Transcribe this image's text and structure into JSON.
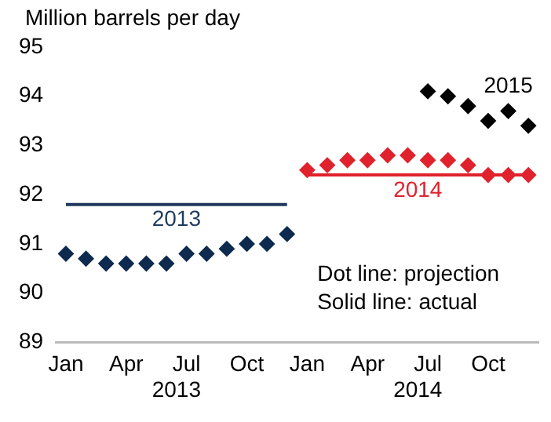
{
  "chart_data": {
    "type": "scatter",
    "ylabel": "Million barrels per day",
    "categories": [
      "Jan",
      null,
      null,
      "Apr",
      null,
      null,
      "Jul",
      null,
      null,
      "Oct",
      null,
      null,
      "Jan",
      null,
      null,
      "Apr",
      null,
      null,
      "Jul",
      null,
      null,
      "Oct",
      null,
      null
    ],
    "series": [
      {
        "color": "#0e2a4f",
        "values": [
          90.8,
          90.7,
          90.6,
          90.6,
          90.6,
          90.6,
          90.8,
          90.8,
          90.9,
          91.0,
          91.0,
          91.2,
          null,
          null,
          null,
          null,
          null,
          null,
          null,
          null,
          null,
          null,
          null,
          null
        ]
      },
      {
        "color": "#e0222c",
        "values": [
          null,
          null,
          null,
          null,
          null,
          null,
          null,
          null,
          null,
          null,
          null,
          null,
          92.5,
          92.6,
          92.7,
          92.7,
          92.8,
          92.8,
          92.7,
          92.7,
          92.6,
          92.4,
          92.4,
          92.4
        ]
      },
      {
        "name": "2015",
        "color": "#000000",
        "values": [
          null,
          null,
          null,
          null,
          null,
          null,
          null,
          null,
          null,
          null,
          null,
          null,
          null,
          null,
          null,
          null,
          null,
          null,
          94.1,
          94.0,
          93.8,
          93.5,
          93.7,
          93.4
        ]
      },
      {
        "type": "line",
        "marker": "none",
        "name": "2013",
        "color": "#1f3a5f",
        "values": [
          91.8,
          91.8,
          91.8,
          91.8,
          91.8,
          91.8,
          91.8,
          91.8,
          91.8,
          91.8,
          91.8,
          91.8,
          null,
          null,
          null,
          null,
          null,
          null,
          null,
          null,
          null,
          null,
          null,
          null
        ]
      },
      {
        "type": "line",
        "marker": "none",
        "name": "2014",
        "color": "#e0222c",
        "values": [
          null,
          null,
          null,
          null,
          null,
          null,
          null,
          null,
          null,
          null,
          null,
          null,
          92.4,
          92.4,
          92.4,
          92.4,
          92.4,
          92.4,
          92.4,
          92.4,
          92.4,
          92.4,
          92.4,
          92.4
        ]
      }
    ],
    "ylim": [
      89,
      95
    ],
    "yticks": [
      89,
      90,
      91,
      92,
      93,
      94,
      95
    ],
    "marker": "diamond",
    "line_style": "solid",
    "annotations": [
      "2013",
      "2014",
      "Dot line: projection",
      "Solid line: actual"
    ],
    "legend": false,
    "grid": false
  }
}
